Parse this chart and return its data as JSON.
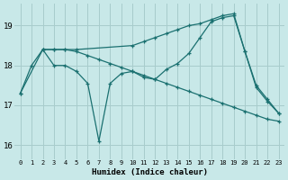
{
  "xlabel": "Humidex (Indice chaleur)",
  "background_color": "#c8e8e8",
  "grid_color": "#a8cccc",
  "line_color": "#1a7070",
  "xlim": [
    -0.5,
    23.5
  ],
  "ylim": [
    15.65,
    19.55
  ],
  "yticks": [
    16,
    17,
    18,
    19
  ],
  "xticks": [
    0,
    1,
    2,
    3,
    4,
    5,
    6,
    7,
    8,
    9,
    10,
    11,
    12,
    13,
    14,
    15,
    16,
    17,
    18,
    19,
    20,
    21,
    22,
    23
  ],
  "series": [
    {
      "x": [
        2,
        3,
        4,
        5,
        6,
        7,
        8,
        9,
        10,
        11,
        12,
        13,
        14,
        15,
        16,
        17,
        18,
        19,
        20,
        21,
        22,
        23
      ],
      "y": [
        18.4,
        18.4,
        18.4,
        18.35,
        18.25,
        18.15,
        18.05,
        17.95,
        17.85,
        17.75,
        17.65,
        17.55,
        17.45,
        17.35,
        17.25,
        17.15,
        17.05,
        16.95,
        16.85,
        16.75,
        16.65,
        16.6
      ]
    },
    {
      "x": [
        0,
        1,
        2,
        3,
        4,
        5,
        6,
        7,
        8,
        9,
        10,
        11,
        12,
        13,
        14,
        15,
        16,
        17,
        18,
        19,
        20,
        21,
        22,
        23
      ],
      "y": [
        17.3,
        18.0,
        18.4,
        18.0,
        18.0,
        17.85,
        17.55,
        16.1,
        17.55,
        17.8,
        17.85,
        17.7,
        17.65,
        17.9,
        18.05,
        18.3,
        18.7,
        19.1,
        19.2,
        19.25,
        18.35,
        17.45,
        17.1,
        16.8
      ]
    },
    {
      "x": [
        0,
        2,
        3,
        4,
        5,
        10,
        11,
        12,
        13,
        14,
        15,
        16,
        17,
        18,
        19,
        20,
        21,
        22,
        23
      ],
      "y": [
        17.3,
        18.4,
        18.4,
        18.4,
        18.4,
        18.5,
        18.6,
        18.7,
        18.8,
        18.9,
        19.0,
        19.05,
        19.15,
        19.25,
        19.3,
        18.35,
        17.5,
        17.15,
        16.8
      ]
    }
  ]
}
